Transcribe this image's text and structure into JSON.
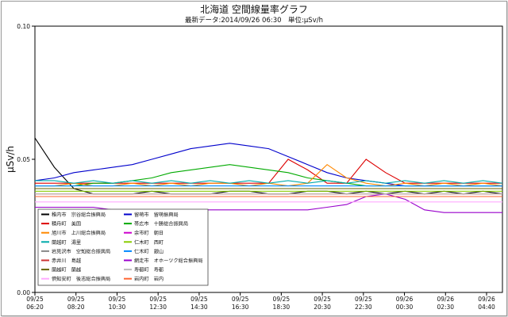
{
  "chart_data": {
    "type": "line",
    "title": "北海道 空間線量率グラフ",
    "subtitle": "最新データ:2014/09/26 06:30　単位:μSv/h",
    "xlabel": "",
    "ylabel": "μSv/h",
    "ylim": [
      0,
      0.1
    ],
    "yticks": [
      "0.00",
      "0.05",
      "0.10"
    ],
    "grid": false,
    "legend_position": "bottom-left",
    "xticks": [
      {
        "date": "09/25",
        "time": "06:20"
      },
      {
        "date": "09/25",
        "time": "08:20"
      },
      {
        "date": "09/25",
        "time": "10:30"
      },
      {
        "date": "09/25",
        "time": "12:30"
      },
      {
        "date": "09/25",
        "time": "14:30"
      },
      {
        "date": "09/25",
        "time": "16:30"
      },
      {
        "date": "09/25",
        "time": "18:30"
      },
      {
        "date": "09/25",
        "time": "20:30"
      },
      {
        "date": "09/25",
        "time": "22:30"
      },
      {
        "date": "09/26",
        "time": "00:30"
      },
      {
        "date": "09/26",
        "time": "02:30"
      },
      {
        "date": "09/26",
        "time": "04:40"
      }
    ],
    "x": [
      0,
      1,
      2,
      3,
      4,
      5,
      6,
      7,
      8,
      9,
      10,
      11,
      12,
      13,
      14,
      15,
      16,
      17,
      18,
      19,
      20,
      21,
      22,
      23,
      24
    ],
    "x_note_unit": "hours since 09/25 06:20",
    "series": [
      {
        "name": "稚内市　宗谷総合振興局",
        "color": "#000000",
        "values": [
          0.058,
          0.047,
          0.039,
          0.037,
          0.037,
          0.037,
          0.038,
          0.037,
          0.037,
          0.037,
          0.038,
          0.038,
          0.037,
          0.037,
          0.038,
          0.038,
          0.037,
          0.038,
          0.037,
          0.038,
          0.037,
          0.038,
          0.037,
          0.038,
          0.037
        ]
      },
      {
        "name": "留萌市　留萌振興局",
        "color": "#0000cc",
        "values": [
          0.042,
          0.043,
          0.045,
          0.046,
          0.047,
          0.048,
          0.05,
          0.052,
          0.054,
          0.055,
          0.056,
          0.055,
          0.054,
          0.051,
          0.048,
          0.045,
          0.043,
          0.042,
          0.041,
          0.04,
          0.04,
          0.04,
          0.04,
          0.04,
          0.04
        ]
      },
      {
        "name": "積丹町　美国",
        "color": "#dd0000",
        "values": [
          0.041,
          0.041,
          0.041,
          0.041,
          0.041,
          0.041,
          0.041,
          0.041,
          0.041,
          0.041,
          0.041,
          0.041,
          0.041,
          0.05,
          0.046,
          0.041,
          0.041,
          0.05,
          0.045,
          0.041,
          0.041,
          0.041,
          0.041,
          0.041,
          0.041
        ]
      },
      {
        "name": "帯広市　十勝総合振興局",
        "color": "#00aa00",
        "values": [
          0.04,
          0.04,
          0.04,
          0.041,
          0.041,
          0.042,
          0.043,
          0.045,
          0.046,
          0.047,
          0.048,
          0.047,
          0.046,
          0.045,
          0.043,
          0.042,
          0.041,
          0.04,
          0.04,
          0.04,
          0.04,
          0.04,
          0.04,
          0.04,
          0.04
        ]
      },
      {
        "name": "旭川市　上川総合振興局",
        "color": "#ff8800",
        "values": [
          0.04,
          0.04,
          0.041,
          0.04,
          0.04,
          0.041,
          0.04,
          0.041,
          0.04,
          0.041,
          0.041,
          0.04,
          0.041,
          0.04,
          0.041,
          0.048,
          0.043,
          0.041,
          0.04,
          0.041,
          0.04,
          0.041,
          0.04,
          0.041,
          0.04
        ]
      },
      {
        "name": "余市町　朝日",
        "color": "#cc00cc",
        "values": [
          0.039,
          0.039,
          0.039,
          0.039,
          0.039,
          0.039,
          0.039,
          0.039,
          0.039,
          0.039,
          0.039,
          0.039,
          0.039,
          0.039,
          0.039,
          0.039,
          0.039,
          0.039,
          0.039,
          0.039,
          0.039,
          0.039,
          0.039,
          0.039,
          0.039
        ]
      },
      {
        "name": "蘭越町　湯里",
        "color": "#00aaaa",
        "values": [
          0.042,
          0.042,
          0.041,
          0.042,
          0.041,
          0.042,
          0.041,
          0.042,
          0.041,
          0.042,
          0.041,
          0.042,
          0.041,
          0.042,
          0.041,
          0.042,
          0.041,
          0.042,
          0.041,
          0.042,
          0.041,
          0.042,
          0.041,
          0.042,
          0.041
        ]
      },
      {
        "name": "仁木町　西町",
        "color": "#88cc00",
        "values": [
          0.038,
          0.038,
          0.038,
          0.038,
          0.038,
          0.038,
          0.038,
          0.038,
          0.038,
          0.038,
          0.038,
          0.038,
          0.038,
          0.038,
          0.038,
          0.038,
          0.038,
          0.038,
          0.038,
          0.038,
          0.038,
          0.038,
          0.038,
          0.038,
          0.038
        ]
      },
      {
        "name": "岩見沢市　空知総合振興局",
        "color": "#888888",
        "values": [
          0.036,
          0.036,
          0.036,
          0.036,
          0.036,
          0.036,
          0.036,
          0.036,
          0.036,
          0.036,
          0.036,
          0.036,
          0.036,
          0.036,
          0.036,
          0.036,
          0.036,
          0.036,
          0.036,
          0.036,
          0.036,
          0.036,
          0.036,
          0.036,
          0.036
        ]
      },
      {
        "name": "仁木町　銀山",
        "color": "#0088ff",
        "values": [
          0.04,
          0.04,
          0.04,
          0.04,
          0.04,
          0.04,
          0.04,
          0.04,
          0.04,
          0.04,
          0.04,
          0.04,
          0.04,
          0.04,
          0.04,
          0.04,
          0.04,
          0.04,
          0.04,
          0.04,
          0.04,
          0.04,
          0.04,
          0.04,
          0.04
        ]
      },
      {
        "name": "赤井川　島越",
        "color": "#cc3333",
        "values": [
          0.037,
          0.037,
          0.037,
          0.037,
          0.037,
          0.037,
          0.037,
          0.037,
          0.037,
          0.037,
          0.037,
          0.037,
          0.037,
          0.037,
          0.037,
          0.037,
          0.037,
          0.037,
          0.037,
          0.037,
          0.037,
          0.037,
          0.037,
          0.037,
          0.037
        ]
      },
      {
        "name": "網走市　オホーツク総合振興局",
        "color": "#9900cc",
        "values": [
          0.032,
          0.032,
          0.032,
          0.032,
          0.031,
          0.031,
          0.031,
          0.031,
          0.031,
          0.031,
          0.031,
          0.031,
          0.031,
          0.031,
          0.031,
          0.032,
          0.033,
          0.036,
          0.037,
          0.035,
          0.031,
          0.03,
          0.03,
          0.03,
          0.03
        ]
      },
      {
        "name": "蘭越町　蘭越",
        "color": "#666600",
        "values": [
          0.039,
          0.039,
          0.039,
          0.039,
          0.039,
          0.039,
          0.039,
          0.039,
          0.039,
          0.039,
          0.039,
          0.039,
          0.039,
          0.039,
          0.039,
          0.039,
          0.039,
          0.039,
          0.039,
          0.039,
          0.039,
          0.039,
          0.039,
          0.039,
          0.039
        ]
      },
      {
        "name": "寿都町　寿都",
        "color": "#bbbbbb",
        "values": [
          0.037,
          0.037,
          0.037,
          0.037,
          0.037,
          0.037,
          0.037,
          0.037,
          0.037,
          0.037,
          0.037,
          0.037,
          0.037,
          0.037,
          0.037,
          0.037,
          0.037,
          0.037,
          0.037,
          0.037,
          0.037,
          0.037,
          0.037,
          0.037,
          0.037
        ]
      },
      {
        "name": "倶知安町　後志総合振興局",
        "color": "#ffaaff",
        "values": [
          0.034,
          0.034,
          0.034,
          0.034,
          0.034,
          0.034,
          0.034,
          0.034,
          0.034,
          0.034,
          0.034,
          0.034,
          0.034,
          0.034,
          0.034,
          0.034,
          0.034,
          0.034,
          0.034,
          0.034,
          0.034,
          0.034,
          0.034,
          0.034,
          0.034
        ]
      },
      {
        "name": "岩内町　岩内",
        "color": "#ff6633",
        "values": [
          0.036,
          0.036,
          0.036,
          0.036,
          0.036,
          0.036,
          0.036,
          0.036,
          0.036,
          0.036,
          0.036,
          0.036,
          0.036,
          0.036,
          0.036,
          0.036,
          0.036,
          0.036,
          0.036,
          0.036,
          0.036,
          0.036,
          0.036,
          0.036,
          0.036
        ]
      }
    ],
    "legend_columns": [
      [
        "稚内市　宗谷総合振興局",
        "積丹町　美国",
        "旭川市　上川総合振興局",
        "蘭越町　湯里",
        "岩見沢市　空知総合振興局",
        "赤井川　島越",
        "蘭越町　蘭越",
        "倶知安町　後志総合振興局"
      ],
      [
        "留萌市　留萌振興局",
        "帯広市　十勝総合振興局",
        "余市町　朝日",
        "仁木町　西町",
        "仁木町　銀山",
        "網走市　オホーツク総合振興局",
        "寿都町　寿都",
        "岩内町　岩内"
      ]
    ]
  }
}
